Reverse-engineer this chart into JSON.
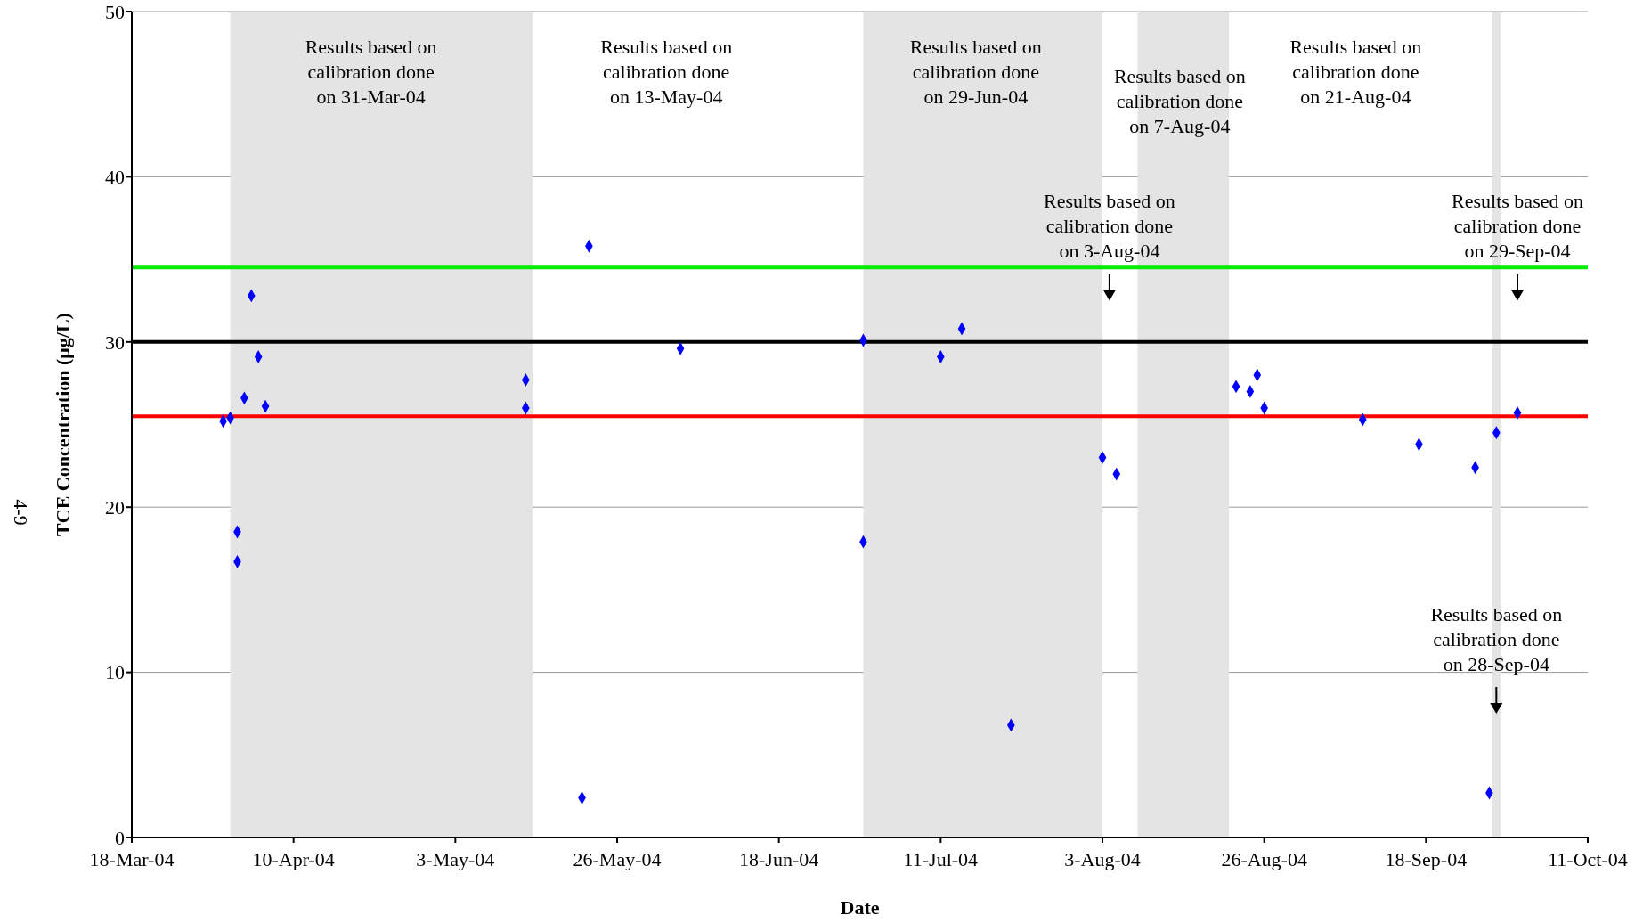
{
  "chart_data": {
    "type": "scatter",
    "xlabel": "Date",
    "ylabel": "TCE Concentration (μg/L)",
    "x": [
      "2004-03-31",
      "2004-04-01",
      "2004-04-02",
      "2004-04-02",
      "2004-04-03",
      "2004-04-04",
      "2004-04-05",
      "2004-04-06",
      "2004-05-13",
      "2004-05-13",
      "2004-05-21",
      "2004-05-22",
      "2004-06-04",
      "2004-06-30",
      "2004-06-30",
      "2004-07-11",
      "2004-07-14",
      "2004-07-21",
      "2004-08-03",
      "2004-08-05",
      "2004-08-22",
      "2004-08-24",
      "2004-08-25",
      "2004-08-26",
      "2004-09-09",
      "2004-09-17",
      "2004-09-25",
      "2004-09-27",
      "2004-09-28",
      "2004-10-01"
    ],
    "series": [
      {
        "color": "#0000ff",
        "values": [
          25.2,
          25.4,
          18.5,
          16.7,
          26.6,
          32.8,
          29.1,
          26.1,
          27.7,
          26.0,
          2.4,
          35.8,
          29.6,
          30.1,
          17.9,
          29.1,
          30.8,
          6.8,
          23.0,
          22.0,
          27.3,
          27.0,
          28.0,
          26.0,
          25.3,
          23.8,
          22.4,
          2.7,
          24.5,
          25.7
        ]
      }
    ],
    "marker": "diamond",
    "grid": "y",
    "legend": false,
    "xlim": [
      "2004-03-18",
      "2004-10-11"
    ],
    "xticks": [
      {
        "value": "2004-03-18",
        "label": "18-Mar-04"
      },
      {
        "value": "2004-04-10",
        "label": "10-Apr-04"
      },
      {
        "value": "2004-05-03",
        "label": "3-May-04"
      },
      {
        "value": "2004-05-26",
        "label": "26-May-04"
      },
      {
        "value": "2004-06-18",
        "label": "18-Jun-04"
      },
      {
        "value": "2004-07-11",
        "label": "11-Jul-04"
      },
      {
        "value": "2004-08-03",
        "label": "3-Aug-04"
      },
      {
        "value": "2004-08-26",
        "label": "26-Aug-04"
      },
      {
        "value": "2004-09-18",
        "label": "18-Sep-04"
      },
      {
        "value": "2004-10-11",
        "label": "11-Oct-04"
      }
    ],
    "ylim": [
      0,
      50
    ],
    "yticks": [
      0,
      10,
      20,
      30,
      40,
      50
    ],
    "ref_lines": [
      {
        "axis": "y",
        "value": 34.5,
        "color": "#00ee00"
      },
      {
        "axis": "y",
        "value": 30,
        "color": "#000000"
      },
      {
        "axis": "y",
        "value": 25.5,
        "color": "#ff0000"
      }
    ],
    "bands": [
      {
        "axis": "x",
        "from": "2004-04-01",
        "to": "2004-05-14",
        "color": "#e4e4e4"
      },
      {
        "axis": "x",
        "from": "2004-06-30",
        "to": "2004-08-03",
        "color": "#e4e4e4"
      },
      {
        "axis": "x",
        "from": "2004-08-08",
        "to": "2004-08-21",
        "color": "#e4e4e4"
      },
      {
        "axis": "x",
        "from": "2004-09-27T10:00",
        "to": "2004-09-28T14:00",
        "color": "#e4e4e4"
      }
    ],
    "annotations": [
      "Results based on calibration done on 31-Mar-04",
      "Results based on calibration done on 13-May-04",
      "Results based on calibration done on 29-Jun-04",
      "Results based on calibration done on 7-Aug-04",
      "Results based on calibration done on 21-Aug-04",
      "Results based on calibration done on 3-Aug-04",
      "Results based on calibration done on 29-Sep-04",
      "Results based on calibration done on 28-Sep-04",
      "4-9"
    ]
  }
}
